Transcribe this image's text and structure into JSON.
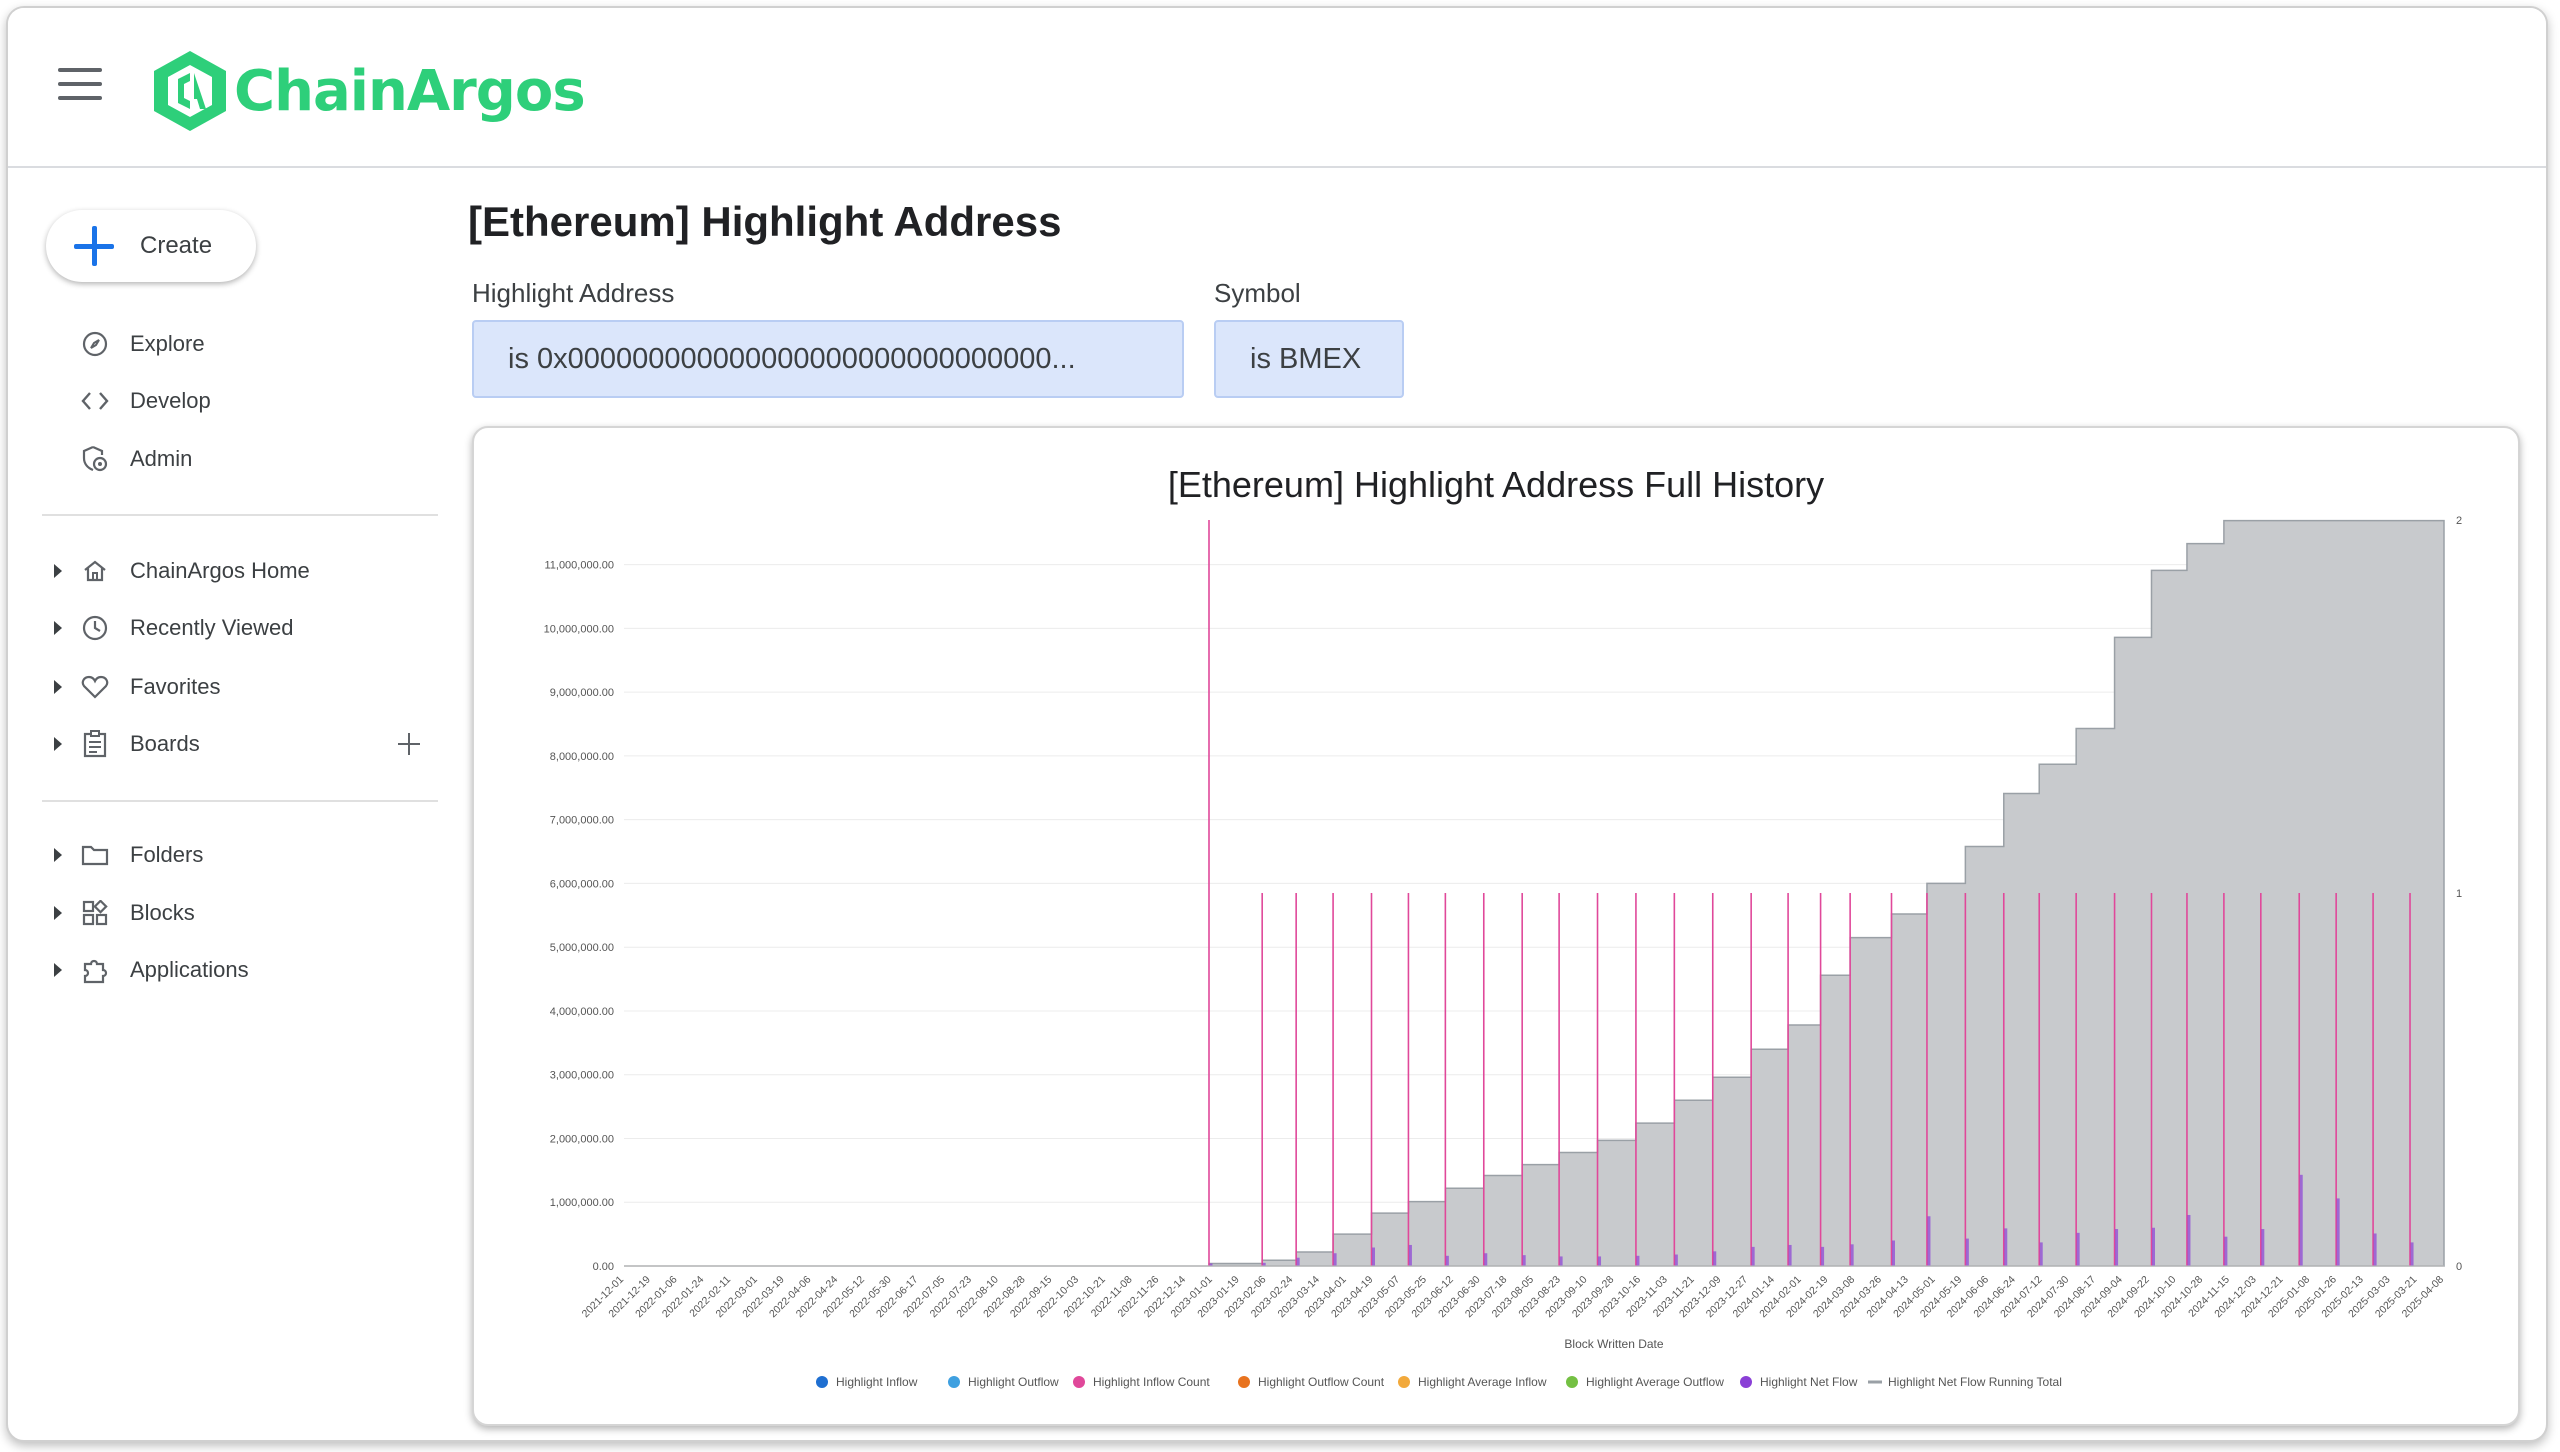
{
  "app": {
    "brand": "ChainArgos",
    "accent": "#2ecf7a"
  },
  "sidebar": {
    "create_label": "Create",
    "primary": [
      {
        "label": "Explore",
        "icon": "compass-icon"
      },
      {
        "label": "Develop",
        "icon": "code-icon"
      },
      {
        "label": "Admin",
        "icon": "admin-icon"
      }
    ],
    "sections": [
      {
        "label": "ChainArgos Home",
        "icon": "home-icon"
      },
      {
        "label": "Recently Viewed",
        "icon": "clock-icon"
      },
      {
        "label": "Favorites",
        "icon": "heart-icon"
      },
      {
        "label": "Boards",
        "icon": "board-icon"
      }
    ],
    "library": [
      {
        "label": "Folders",
        "icon": "folder-icon"
      },
      {
        "label": "Blocks",
        "icon": "blocks-icon"
      },
      {
        "label": "Applications",
        "icon": "puzzle-icon"
      }
    ]
  },
  "page": {
    "title": "[Ethereum] Highlight Address",
    "filters": [
      {
        "label": "Highlight Address",
        "value": "is 0x000000000000000000000000000000..."
      },
      {
        "label": "Symbol",
        "value": "is BMEX"
      }
    ]
  },
  "chart_data": {
    "type": "area",
    "title": "[Ethereum] Highlight Address Full History",
    "xlabel": "Block Written Date",
    "ylabel": "",
    "ylim_left": [
      0,
      11700000
    ],
    "ylim_right": [
      0,
      2
    ],
    "y_ticks_left": [
      "0.00",
      "1,000,000.00",
      "2,000,000.00",
      "3,000,000.00",
      "4,000,000.00",
      "5,000,000.00",
      "6,000,000.00",
      "7,000,000.00",
      "8,000,000.00",
      "9,000,000.00",
      "10,000,000.00",
      "11,000,000.00"
    ],
    "y_ticks_right": [
      "0",
      "1",
      "2"
    ],
    "grid": true,
    "legend_position": "bottom",
    "categories": [
      "2021-12-01",
      "2021-12-19",
      "2022-01-06",
      "2022-01-24",
      "2022-02-11",
      "2022-03-01",
      "2022-03-19",
      "2022-04-06",
      "2022-04-24",
      "2022-05-12",
      "2022-05-30",
      "2022-06-17",
      "2022-07-05",
      "2022-07-23",
      "2022-08-10",
      "2022-08-28",
      "2022-09-15",
      "2022-10-03",
      "2022-10-21",
      "2022-11-08",
      "2022-11-26",
      "2022-12-14",
      "2023-01-01",
      "2023-01-19",
      "2023-02-06",
      "2023-02-24",
      "2023-03-14",
      "2023-04-01",
      "2023-04-19",
      "2023-05-07",
      "2023-05-25",
      "2023-06-12",
      "2023-06-30",
      "2023-07-18",
      "2023-08-05",
      "2023-08-23",
      "2023-09-10",
      "2023-09-28",
      "2023-10-16",
      "2023-11-03",
      "2023-11-21",
      "2023-12-09",
      "2023-12-27",
      "2024-01-14",
      "2024-02-01",
      "2024-02-19",
      "2024-03-08",
      "2024-03-26",
      "2024-04-13",
      "2024-05-01",
      "2024-05-19",
      "2024-06-06",
      "2024-06-24",
      "2024-07-12",
      "2024-07-30",
      "2024-08-17",
      "2024-09-04",
      "2024-09-22",
      "2024-10-10",
      "2024-10-28",
      "2024-11-15",
      "2024-12-03",
      "2024-12-21",
      "2025-01-08",
      "2025-01-26",
      "2025-02-13",
      "2025-03-03",
      "2025-03-21",
      "2025-04-08"
    ],
    "series": [
      {
        "name": "Highlight Inflow",
        "color": "#1f6fd1",
        "marker": "dot"
      },
      {
        "name": "Highlight Outflow",
        "color": "#3fa0e0",
        "marker": "dot"
      },
      {
        "name": "Highlight Inflow Count",
        "color": "#e0489a",
        "marker": "dot",
        "axis": "right",
        "x": [
          "2023-01-01",
          "2023-02-06",
          "2023-03-01",
          "2023-03-26",
          "2023-04-21",
          "2023-05-16",
          "2023-06-10",
          "2023-07-06",
          "2023-08-01",
          "2023-08-26",
          "2023-09-21",
          "2023-10-17",
          "2023-11-12",
          "2023-12-08",
          "2024-01-03",
          "2024-01-28",
          "2024-02-19",
          "2024-03-10",
          "2024-04-07",
          "2024-05-01",
          "2024-05-27",
          "2024-06-22",
          "2024-07-16",
          "2024-08-10",
          "2024-09-05",
          "2024-09-30",
          "2024-10-24",
          "2024-11-18",
          "2024-12-13",
          "2025-01-08",
          "2025-02-02",
          "2025-02-27",
          "2025-03-24"
        ],
        "values": [
          2,
          1,
          1,
          1,
          1,
          1,
          1,
          1,
          1,
          1,
          1,
          1,
          1,
          1,
          1,
          1,
          1,
          1,
          1,
          1,
          1,
          1,
          1,
          1,
          1,
          1,
          1,
          1,
          1,
          1,
          1,
          1,
          1
        ]
      },
      {
        "name": "Highlight Outflow Count",
        "color": "#e8731f",
        "marker": "dot"
      },
      {
        "name": "Highlight Average Inflow",
        "color": "#f2a93b",
        "marker": "dot"
      },
      {
        "name": "Highlight Average Outflow",
        "color": "#74c043",
        "marker": "dot"
      },
      {
        "name": "Highlight Net Flow",
        "color": "#8a40d6",
        "marker": "dot",
        "x": [
          "2023-01-01",
          "2023-02-06",
          "2023-03-01",
          "2023-03-26",
          "2023-04-21",
          "2023-05-16",
          "2023-06-10",
          "2023-07-06",
          "2023-08-01",
          "2023-08-26",
          "2023-09-21",
          "2023-10-17",
          "2023-11-12",
          "2023-12-08",
          "2024-01-03",
          "2024-01-28",
          "2024-02-19",
          "2024-03-10",
          "2024-04-07",
          "2024-05-01",
          "2024-05-27",
          "2024-06-22",
          "2024-07-16",
          "2024-08-10",
          "2024-09-05",
          "2024-09-30",
          "2024-10-24",
          "2024-11-18",
          "2024-12-13",
          "2025-01-08",
          "2025-02-02",
          "2025-02-27",
          "2025-03-24"
        ],
        "values": [
          40000,
          50000,
          130000,
          200000,
          290000,
          330000,
          160000,
          200000,
          170000,
          150000,
          150000,
          160000,
          180000,
          230000,
          300000,
          330000,
          300000,
          340000,
          400000,
          780000,
          430000,
          590000,
          370000,
          520000,
          580000,
          600000,
          800000,
          460000,
          580000,
          1430000,
          1060000,
          510000,
          370000
        ]
      },
      {
        "name": "Highlight Net Flow Running Total",
        "color": "#9aa0a6",
        "marker": "line",
        "fill": "#c8cacd",
        "x": [
          "2021-12-01",
          "2023-01-01",
          "2023-02-06",
          "2023-03-01",
          "2023-03-26",
          "2023-04-21",
          "2023-05-16",
          "2023-06-10",
          "2023-07-06",
          "2023-08-01",
          "2023-08-26",
          "2023-09-21",
          "2023-10-17",
          "2023-11-12",
          "2023-12-08",
          "2024-01-03",
          "2024-01-28",
          "2024-02-19",
          "2024-03-10",
          "2024-04-07",
          "2024-05-01",
          "2024-05-27",
          "2024-06-22",
          "2024-07-16",
          "2024-08-10",
          "2024-09-05",
          "2024-09-30",
          "2024-10-24",
          "2024-11-18",
          "2024-12-13",
          "2025-01-08",
          "2025-02-02",
          "2025-02-27",
          "2025-03-24",
          "2025-04-14"
        ],
        "values": [
          0,
          40000,
          90000,
          220000,
          500000,
          830000,
          1010000,
          1220000,
          1420000,
          1590000,
          1780000,
          1970000,
          2240000,
          2600000,
          2960000,
          3400000,
          3780000,
          4560000,
          5150000,
          5520000,
          6000000,
          6580000,
          7410000,
          7870000,
          8430000,
          9860000,
          10910000,
          11330000,
          11690000,
          11690000,
          11690000,
          11690000,
          11690000,
          11690000,
          11690000
        ]
      }
    ]
  }
}
